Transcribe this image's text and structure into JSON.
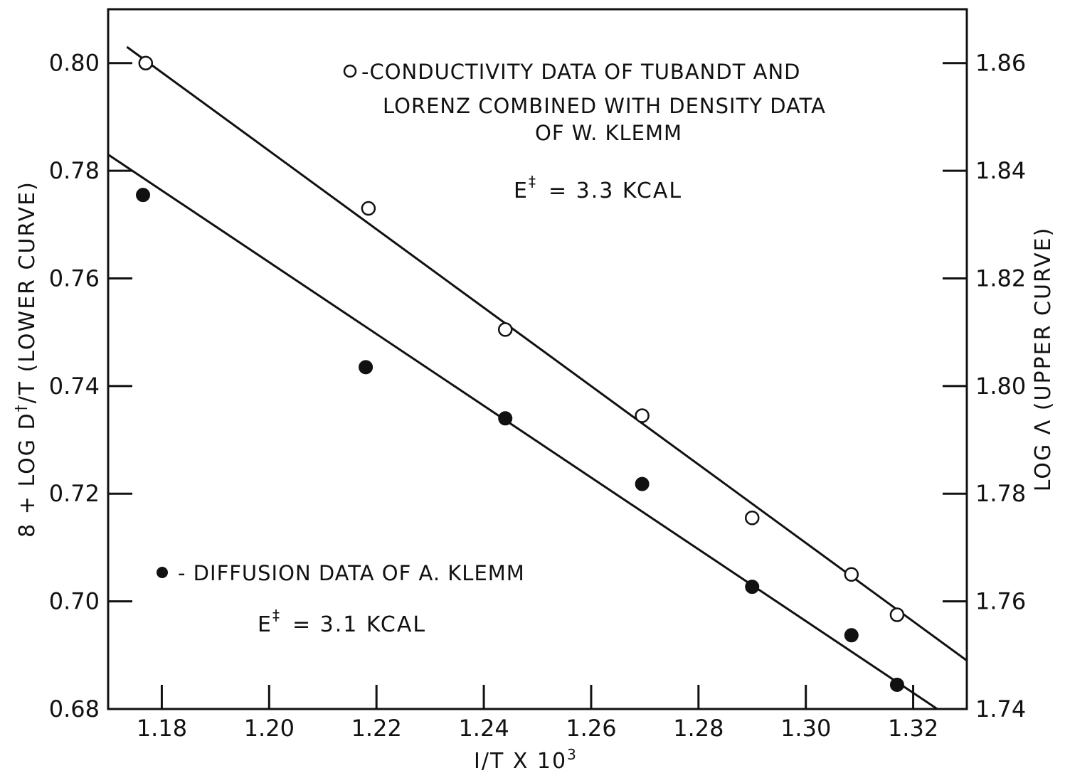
{
  "chart_data": {
    "type": "scatter",
    "xlabel": "I/T X 10",
    "xlabel_sup": "3",
    "ylabel_left": {
      "prefix": "8 + LOG D",
      "sup": "†",
      "suffix": "/T  (LOWER CURVE)"
    },
    "ylabel_right": "LOG Λ  (UPPER CURVE)",
    "xlim": [
      1.17,
      1.33
    ],
    "ylim_left": [
      0.68,
      0.81
    ],
    "ylim_right": [
      1.74,
      1.87
    ],
    "x_ticks": [
      1.18,
      1.2,
      1.22,
      1.24,
      1.26,
      1.28,
      1.3,
      1.32
    ],
    "x_tick_labels": [
      "1.18",
      "1.20",
      "1.22",
      "1.24",
      "1.26",
      "1.28",
      "1.30",
      "1.32"
    ],
    "y_left_ticks": [
      0.68,
      0.7,
      0.72,
      0.74,
      0.76,
      0.78,
      0.8
    ],
    "y_left_tick_labels": [
      "0.68",
      "0.70",
      "0.72",
      "0.74",
      "0.76",
      "0.78",
      "0.80"
    ],
    "y_right_ticks": [
      1.74,
      1.76,
      1.78,
      1.8,
      1.82,
      1.84,
      1.86
    ],
    "y_right_tick_labels": [
      "1.74",
      "1.76",
      "1.78",
      "1.80",
      "1.82",
      "1.84",
      "1.86"
    ],
    "series": [
      {
        "name": "-CONDUCTIVITY DATA OF TUBANDT AND LORENZ COMBINED WITH DENSITY DATA OF W. KLEMM",
        "axis": "right",
        "marker": "open-circle",
        "x": [
          1.177,
          1.2185,
          1.244,
          1.2695,
          1.29,
          1.3085,
          1.317
        ],
        "y": [
          1.86,
          1.833,
          1.8105,
          1.7945,
          1.7755,
          1.765,
          1.7575
        ],
        "fit_line": {
          "x": [
            1.1735,
            1.33
          ],
          "y": [
            1.863,
            1.749
          ]
        }
      },
      {
        "name": "- DIFFUSION DATA OF A. KLEMM",
        "axis": "left",
        "marker": "filled-circle",
        "x": [
          1.1765,
          1.218,
          1.244,
          1.2695,
          1.29,
          1.3085,
          1.317
        ],
        "y": [
          0.7755,
          0.7435,
          0.734,
          0.7218,
          0.7027,
          0.6937,
          0.6845
        ],
        "fit_line": {
          "x": [
            1.17,
            1.3245
          ],
          "y": [
            0.783,
            0.68
          ]
        }
      }
    ],
    "annotations": {
      "upper_legend_lines": [
        "-CONDUCTIVITY DATA OF TUBANDT AND",
        "LORENZ COMBINED WITH DENSITY DATA",
        "OF W. KLEMM"
      ],
      "upper_energy_prefix": "E",
      "upper_energy_sup": "‡",
      "upper_energy_value": "=  3.3  KCAL",
      "lower_legend_line": "- DIFFUSION DATA OF A. KLEMM",
      "lower_energy_prefix": "E",
      "lower_energy_sup": "‡",
      "lower_energy_value": "=  3.1  KCAL"
    },
    "grid": false
  }
}
